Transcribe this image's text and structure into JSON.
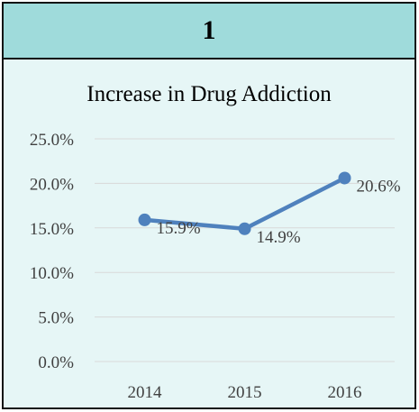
{
  "panel": {
    "number": "1"
  },
  "colors": {
    "header_bg": "#9fdbdb",
    "panel_bg": "#e6f6f6",
    "series": "#4f81bd",
    "grid": "#d9d9d9"
  },
  "chart_data": {
    "type": "line",
    "title": "Increase in Drug Addiction",
    "xlabel": "",
    "ylabel": "",
    "categories": [
      "2014",
      "2015",
      "2016"
    ],
    "series": [
      {
        "values": [
          15.9,
          14.9,
          20.6
        ],
        "labels": [
          "15.9%",
          "14.9%",
          "20.6%"
        ]
      }
    ],
    "ylim": [
      0,
      25
    ],
    "yticks": [
      0,
      5,
      10,
      15,
      20,
      25
    ],
    "ytick_labels": [
      "0.0%",
      "5.0%",
      "10.0%",
      "15.0%",
      "20.0%",
      "25.0%"
    ],
    "grid": true,
    "legend": "none",
    "markers": true
  }
}
